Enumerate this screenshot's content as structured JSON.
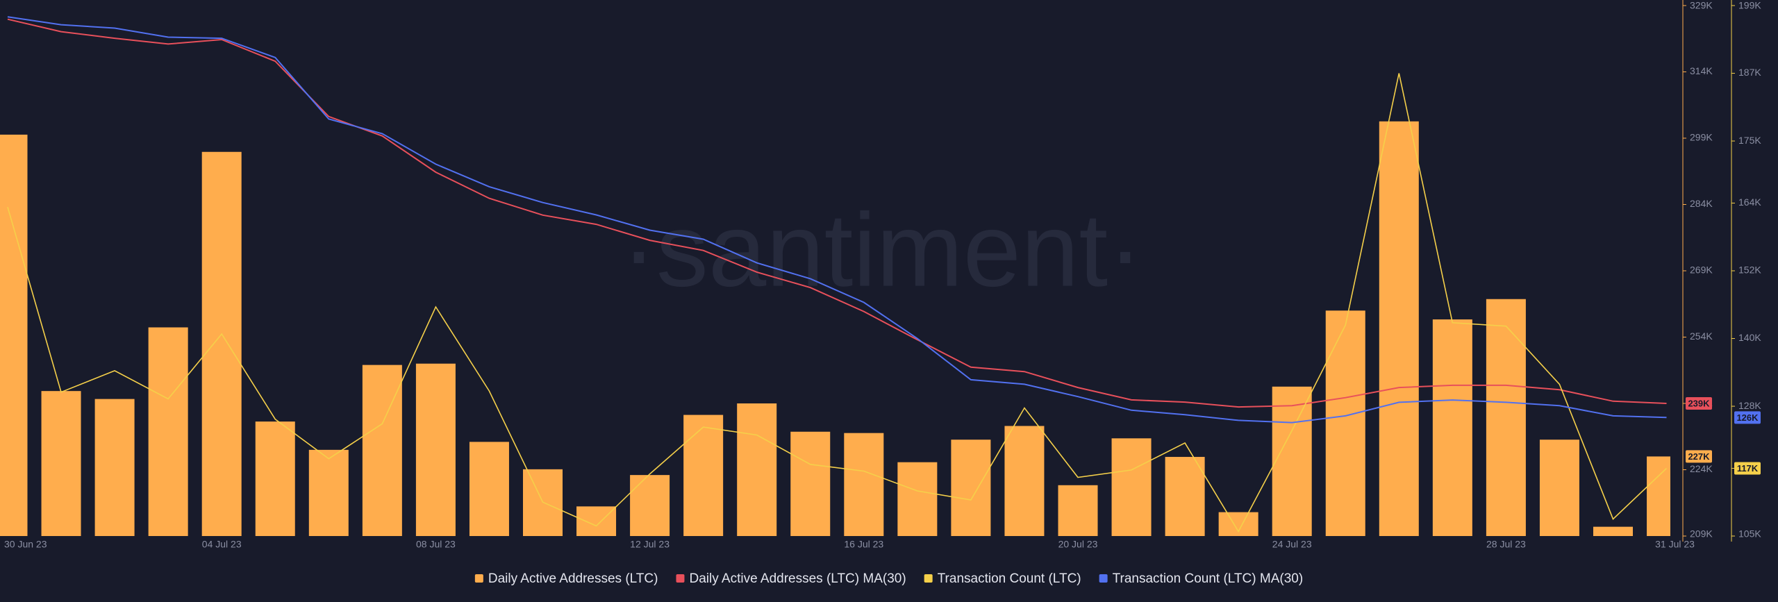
{
  "chart_data": {
    "type": "bar",
    "watermark": "·santiment·",
    "categories": [
      "30 Jun 23",
      null,
      null,
      null,
      "04 Jul 23",
      null,
      null,
      null,
      "08 Jul 23",
      null,
      null,
      null,
      "12 Jul 23",
      null,
      null,
      null,
      "16 Jul 23",
      null,
      null,
      null,
      "20 Jul 23",
      null,
      null,
      null,
      "24 Jul 23",
      null,
      null,
      null,
      "28 Jul 23",
      null,
      null,
      "31 Jul 23"
    ],
    "series": [
      {
        "name": "Daily Active Addresses (LTC)",
        "type": "bar",
        "color": "#ffad4d",
        "values": [
          299.8,
          241.8,
          240.0,
          256.2,
          295.9,
          234.9,
          228.5,
          247.7,
          248.0,
          230.3,
          224.1,
          215.7,
          222.8,
          236.4,
          239.0,
          232.6,
          232.3,
          225.7,
          230.8,
          233.9,
          220.5,
          231.1,
          226.9,
          214.4,
          242.8,
          260.0,
          302.8,
          258.0,
          262.6,
          230.8,
          211.1,
          227
        ],
        "value_labels": [
          null,
          null,
          null,
          null,
          null,
          null,
          null,
          null,
          null,
          null,
          null,
          null,
          null,
          null,
          null,
          null,
          null,
          null,
          null,
          null,
          null,
          null,
          null,
          null,
          null,
          null,
          null,
          null,
          null,
          null,
          null,
          "227K"
        ]
      },
      {
        "name": "Daily Active Addresses (LTC) MA(30)",
        "type": "line",
        "color": "#e8505b",
        "values": [
          325.9,
          323.1,
          321.6,
          320.3,
          321.3,
          316.4,
          303.9,
          299.5,
          291.3,
          285.4,
          281.6,
          279.5,
          275.9,
          273.6,
          268.7,
          265.2,
          259.8,
          253.4,
          247.2,
          246.2,
          242.6,
          239.8,
          239.3,
          238.2,
          238.5,
          240.3,
          242.6,
          243.1,
          243.1,
          242.1,
          239.5,
          239
        ],
        "value_labels": [
          null,
          null,
          null,
          null,
          null,
          null,
          null,
          null,
          null,
          null,
          null,
          null,
          null,
          null,
          null,
          null,
          null,
          null,
          null,
          null,
          null,
          null,
          null,
          null,
          null,
          null,
          null,
          null,
          null,
          null,
          null,
          "239K"
        ]
      },
      {
        "name": "Transaction Count (LTC)",
        "type": "line",
        "axis": "y2",
        "color": "#f5d04a",
        "values": [
          163.3,
          130.5,
          134.3,
          129.3,
          140.8,
          125.7,
          118.7,
          124.9,
          145.6,
          130.7,
          111.0,
          106.8,
          116.0,
          124.3,
          122.9,
          117.7,
          116.5,
          113.0,
          111.4,
          127.7,
          115.4,
          116.7,
          121.5,
          105.8,
          123.7,
          142.4,
          187.0,
          142.8,
          142.2,
          131.9,
          108.0,
          117
        ],
        "value_labels": [
          null,
          null,
          null,
          null,
          null,
          null,
          null,
          null,
          null,
          null,
          null,
          null,
          null,
          null,
          null,
          null,
          null,
          null,
          null,
          null,
          null,
          null,
          null,
          null,
          null,
          null,
          null,
          null,
          null,
          null,
          null,
          "117K"
        ]
      },
      {
        "name": "Transaction Count (LTC) MA(30)",
        "type": "line",
        "axis": "y2",
        "color": "#5271f0",
        "values": [
          197.0,
          195.6,
          195.0,
          193.4,
          193.2,
          189.8,
          178.9,
          176.3,
          170.9,
          166.9,
          164.1,
          161.9,
          159.2,
          157.6,
          153.4,
          150.6,
          146.4,
          140.0,
          132.7,
          131.9,
          129.7,
          127.3,
          126.5,
          125.5,
          125.1,
          126.3,
          128.7,
          129.1,
          128.7,
          128.1,
          126.3,
          126
        ],
        "value_labels": [
          null,
          null,
          null,
          null,
          null,
          null,
          null,
          null,
          null,
          null,
          null,
          null,
          null,
          null,
          null,
          null,
          null,
          null,
          null,
          null,
          null,
          null,
          null,
          null,
          null,
          null,
          null,
          null,
          null,
          null,
          null,
          "126K"
        ]
      }
    ],
    "ylim": [
      209,
      329
    ],
    "yticks": [
      {
        "value": 209,
        "label": "209K"
      },
      {
        "value": 224,
        "label": "224K"
      },
      {
        "value": 239,
        "label": "239K"
      },
      {
        "value": 254,
        "label": "254K"
      },
      {
        "value": 269,
        "label": "269K"
      },
      {
        "value": 284,
        "label": "284K"
      },
      {
        "value": 299,
        "label": "299K"
      },
      {
        "value": 314,
        "label": "314K"
      },
      {
        "value": 329,
        "label": "329K"
      }
    ],
    "y2lim": [
      105,
      199
    ],
    "y2ticks": [
      {
        "value": 105,
        "label": "105K"
      },
      {
        "value": 117,
        "label": "117K"
      },
      {
        "value": 128,
        "label": "128K"
      },
      {
        "value": 140,
        "label": "140K"
      },
      {
        "value": 152,
        "label": "152K"
      },
      {
        "value": 164,
        "label": "164K"
      },
      {
        "value": 175,
        "label": "175K"
      },
      {
        "value": 187,
        "label": "187K"
      },
      {
        "value": 199,
        "label": "199K"
      }
    ],
    "y1_axis_color": "#ffad4d",
    "y2_axis_color": "#f5d04a",
    "legend": "bottom"
  }
}
